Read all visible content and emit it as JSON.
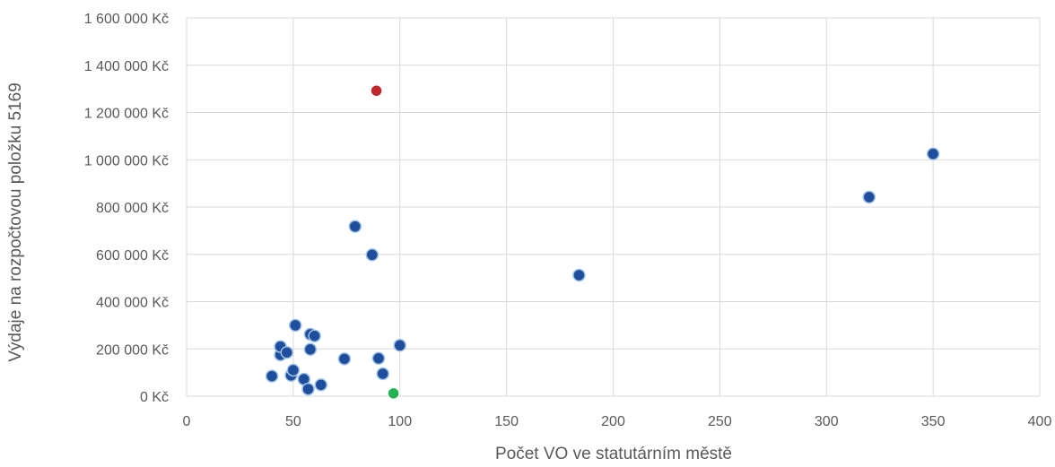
{
  "chart_data": {
    "type": "scatter",
    "title": "",
    "xlabel": "Počet VO ve statutárním městě",
    "ylabel": "Výdaje na rozpočtovou položku 5169",
    "xlim": [
      0,
      400
    ],
    "ylim": [
      0,
      1600000
    ],
    "x_ticks": [
      "0",
      "50",
      "100",
      "150",
      "200",
      "250",
      "300",
      "350",
      "400"
    ],
    "y_ticks": [
      "0 Kč",
      "200 000 Kč",
      "400 000 Kč",
      "600 000 Kč",
      "800 000 Kč",
      "1 000 000 Kč",
      "1 200 000 Kč",
      "1 400 000 Kč",
      "1 600 000 Kč"
    ],
    "grid": true,
    "colors": {
      "default": "#1f4e9c",
      "default_edge": "#9dc3e6",
      "highlight_high": "#c0272d",
      "highlight_low": "#1fb450"
    },
    "points": [
      {
        "x": 40,
        "y": 85000
      },
      {
        "x": 44,
        "y": 175000
      },
      {
        "x": 44,
        "y": 210000
      },
      {
        "x": 47,
        "y": 185000
      },
      {
        "x": 49,
        "y": 88000
      },
      {
        "x": 50,
        "y": 110000
      },
      {
        "x": 51,
        "y": 300000
      },
      {
        "x": 55,
        "y": 72000
      },
      {
        "x": 57,
        "y": 30000
      },
      {
        "x": 58,
        "y": 198000
      },
      {
        "x": 58,
        "y": 262000
      },
      {
        "x": 60,
        "y": 255000
      },
      {
        "x": 63,
        "y": 48000
      },
      {
        "x": 74,
        "y": 158000
      },
      {
        "x": 79,
        "y": 718000
      },
      {
        "x": 87,
        "y": 598000
      },
      {
        "x": 90,
        "y": 160000
      },
      {
        "x": 92,
        "y": 95000
      },
      {
        "x": 100,
        "y": 215000
      },
      {
        "x": 184,
        "y": 512000
      },
      {
        "x": 320,
        "y": 842000
      },
      {
        "x": 350,
        "y": 1025000
      },
      {
        "x": 89,
        "y": 1292000,
        "color": "#c0272d"
      },
      {
        "x": 97,
        "y": 12000,
        "color": "#1fb450"
      }
    ]
  }
}
